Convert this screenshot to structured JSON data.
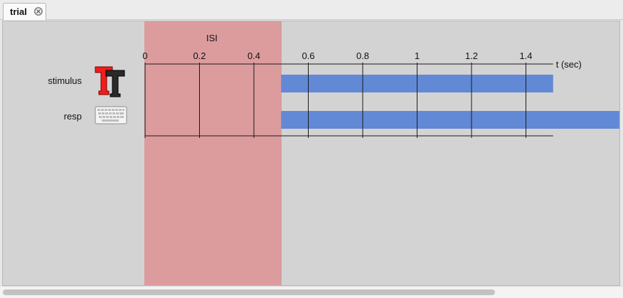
{
  "tab": {
    "label": "trial"
  },
  "isi": {
    "label": "ISI",
    "start": 0,
    "end": 0.5
  },
  "axis": {
    "ticks": [
      0,
      0.2,
      0.4,
      0.6,
      0.8,
      1,
      1.2,
      1.4
    ],
    "tick_labels": [
      "0",
      "0.2",
      "0.4",
      "0.6",
      "0.8",
      "1",
      "1.2",
      "1.4"
    ],
    "unit_label": "t (sec)",
    "visible_max": 1.5
  },
  "components": [
    {
      "name": "stimulus",
      "icon": "text-component-icon",
      "start": 0.5,
      "end": 1.5,
      "color": "#6289d6"
    },
    {
      "name": "resp",
      "icon": "keyboard-icon",
      "start": 0.5,
      "end": "open",
      "color": "#6289d6"
    }
  ],
  "scrollbar": {
    "thumb_fraction": 0.79
  },
  "colors": {
    "isi_band": "#dc9c9e",
    "panel_bg": "#d3d3d3",
    "bar": "#6289d6"
  }
}
